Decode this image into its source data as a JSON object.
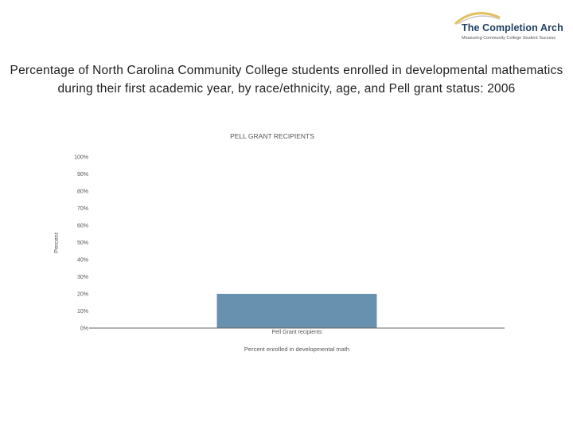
{
  "logo": {
    "name": "The Completion Arch",
    "tagline": "Measuring Community College Student Success"
  },
  "title": "Percentage of North Carolina Community College students enrolled in developmental mathematics during their first academic year, by race/ethnicity, age, and Pell grant status: 2006",
  "colors": {
    "bar": "#6891b0",
    "axis": "#666666",
    "logo_text": "#1f3f66",
    "logo_arc": "#e3c163"
  },
  "chart_data": {
    "type": "bar",
    "title": "PELL GRANT RECIPIENTS",
    "categories": [
      "Pell Grant recipients"
    ],
    "series": [
      {
        "values": [
          20
        ]
      }
    ],
    "ylabel": "Percent",
    "xlabel": "Percent enrolled in developmental math",
    "ylim": [
      0,
      100
    ],
    "yticks": [
      "0%",
      "10%",
      "20%",
      "30%",
      "40%",
      "50%",
      "60%",
      "70%",
      "80%",
      "90%",
      "100%"
    ],
    "grid": false,
    "legend": "none"
  }
}
